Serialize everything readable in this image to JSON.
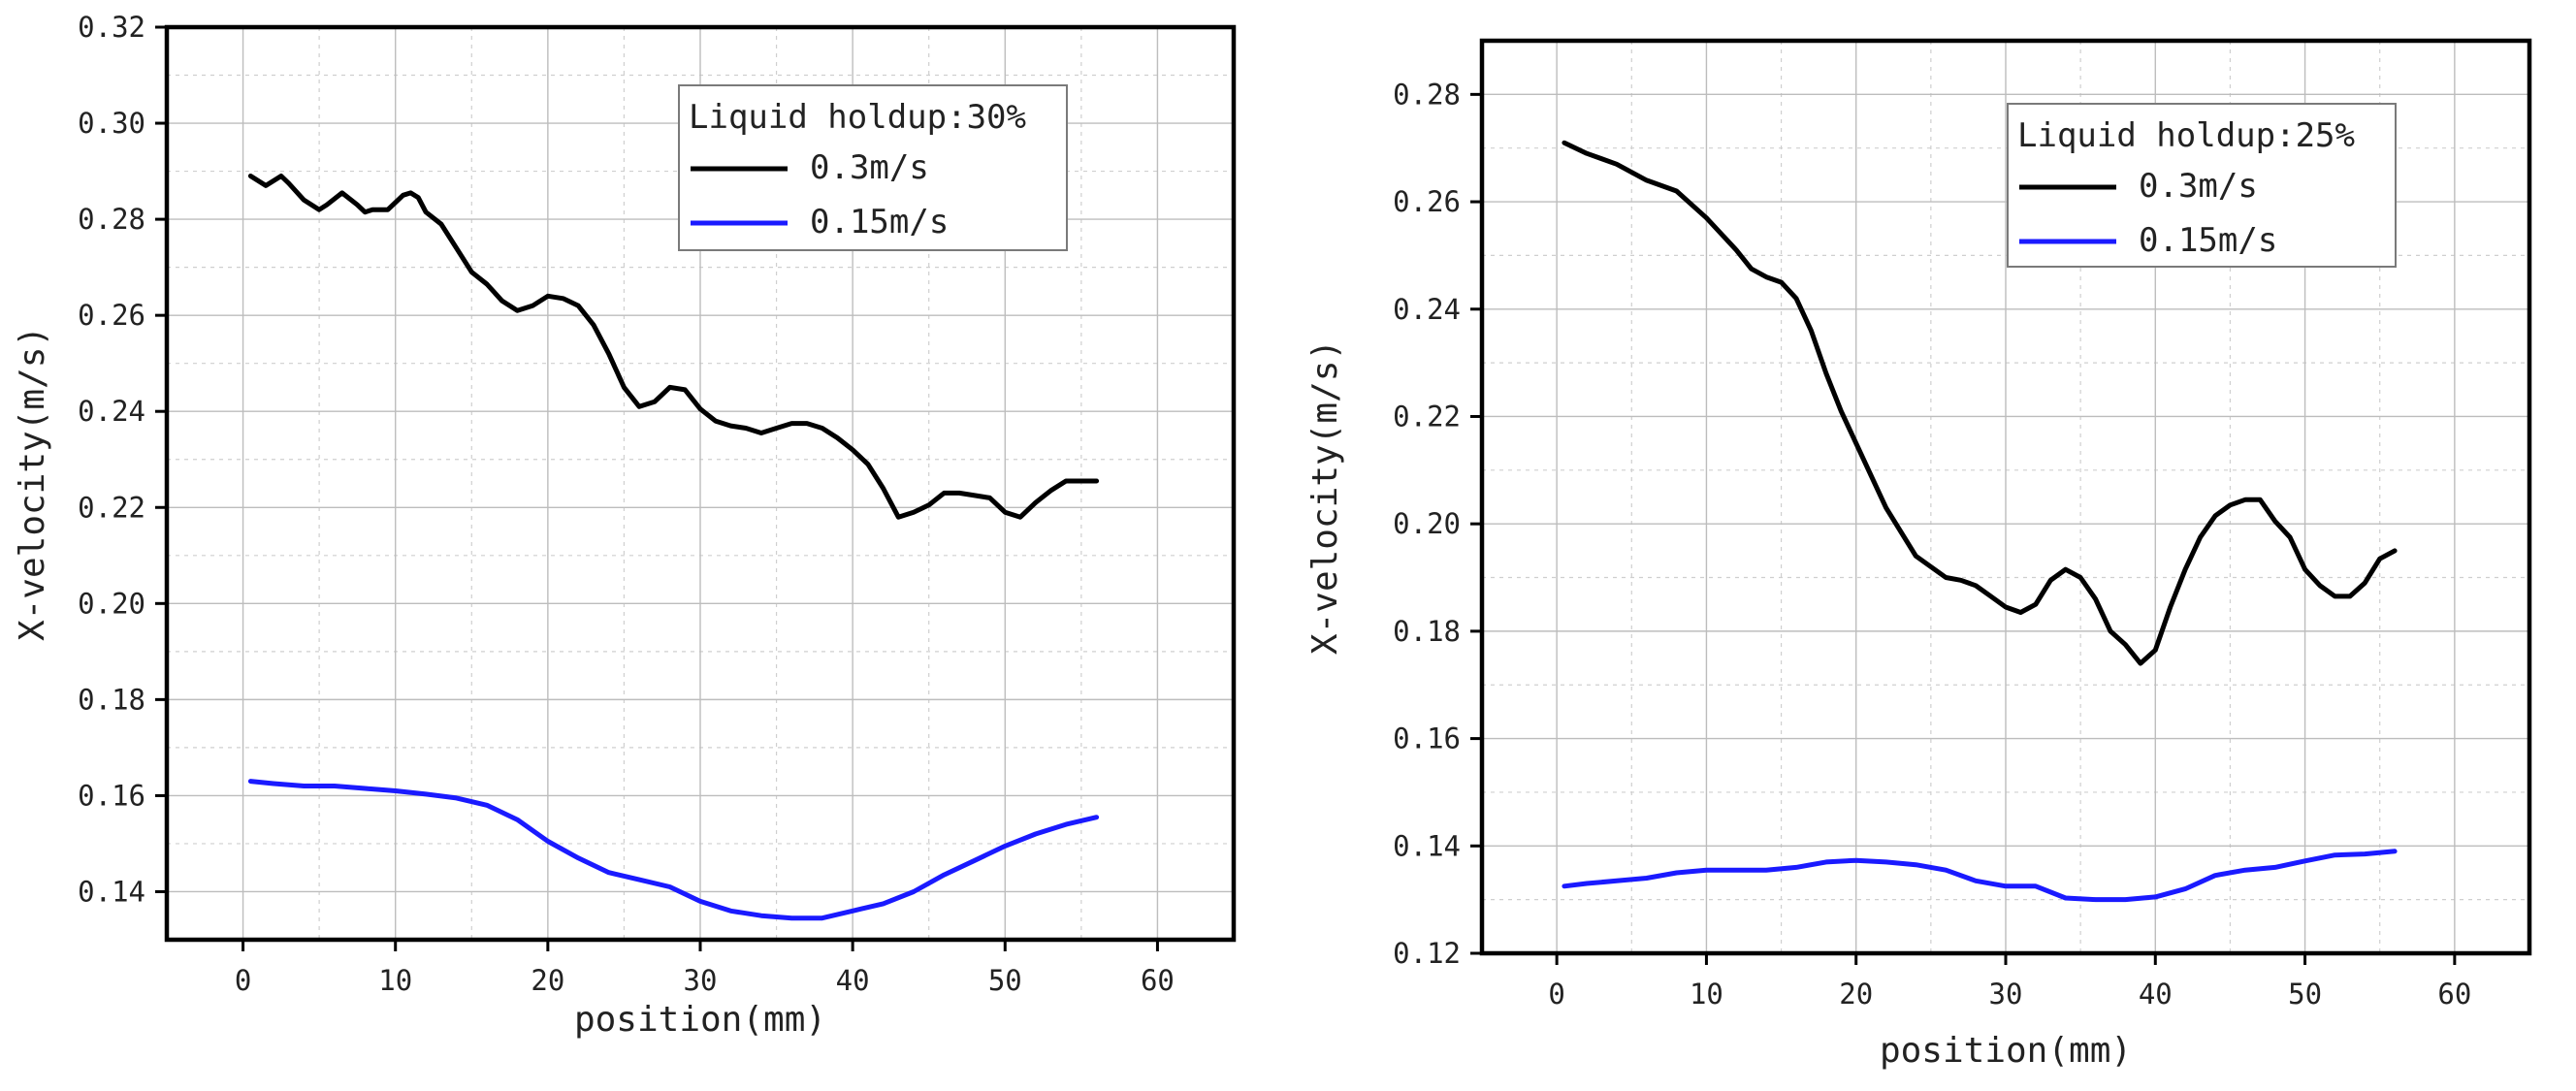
{
  "chart_data": [
    {
      "type": "line",
      "title": "",
      "xlabel": "position(mm)",
      "ylabel": "X-velocity(m/s)",
      "xlim": [
        -5,
        65
      ],
      "ylim": [
        0.13,
        0.32
      ],
      "xticks": [
        0,
        10,
        20,
        30,
        40,
        50,
        60
      ],
      "yticks": [
        0.14,
        0.16,
        0.18,
        0.2,
        0.22,
        0.24,
        0.26,
        0.28,
        0.3,
        0.32
      ],
      "ytick_labels": [
        "0.14",
        "0.16",
        "0.18",
        "0.20",
        "0.22",
        "0.24",
        "0.26",
        "0.28",
        "0.30",
        "0.32"
      ],
      "grid": true,
      "legend": {
        "position": "top-right",
        "title": "Liquid holdup:30%"
      },
      "series": [
        {
          "name": "0.3m/s",
          "color": "#000000",
          "x": [
            0.5,
            1.5,
            2.5,
            3,
            4,
            5,
            5.5,
            6.5,
            7.5,
            8,
            8.5,
            9.5,
            10.5,
            11,
            11.5,
            12,
            13,
            14,
            15,
            16,
            17,
            18,
            19,
            20,
            21,
            22,
            23,
            24,
            25,
            26,
            27,
            28,
            29,
            30,
            31,
            32,
            33,
            34,
            35,
            36,
            37,
            38,
            39,
            40,
            41,
            42,
            43,
            44,
            45,
            46,
            47,
            48,
            49,
            50,
            51,
            52,
            53,
            54,
            55,
            56
          ],
          "values": [
            0.289,
            0.287,
            0.289,
            0.2875,
            0.284,
            0.282,
            0.283,
            0.2855,
            0.283,
            0.2815,
            0.282,
            0.282,
            0.285,
            0.2855,
            0.2845,
            0.2815,
            0.279,
            0.274,
            0.269,
            0.2665,
            0.263,
            0.261,
            0.262,
            0.264,
            0.2635,
            0.262,
            0.258,
            0.252,
            0.245,
            0.241,
            0.242,
            0.245,
            0.2445,
            0.2405,
            0.238,
            0.237,
            0.2365,
            0.2355,
            0.2365,
            0.2375,
            0.2375,
            0.2365,
            0.2345,
            0.232,
            0.229,
            0.224,
            0.218,
            0.219,
            0.2205,
            0.223,
            0.223,
            0.2225,
            0.222,
            0.219,
            0.218,
            0.221,
            0.2235,
            0.2255,
            0.2255,
            0.2255
          ]
        },
        {
          "name": "0.15m/s",
          "color": "#1a1aff",
          "x": [
            0.5,
            2,
            4,
            6,
            8,
            10,
            12,
            14,
            16,
            18,
            20,
            22,
            24,
            26,
            28,
            30,
            32,
            34,
            36,
            38,
            40,
            42,
            44,
            46,
            48,
            50,
            52,
            54,
            56
          ],
          "values": [
            0.163,
            0.1625,
            0.162,
            0.162,
            0.1615,
            0.161,
            0.1603,
            0.1595,
            0.158,
            0.155,
            0.1505,
            0.147,
            0.144,
            0.1425,
            0.141,
            0.138,
            0.136,
            0.135,
            0.1345,
            0.1345,
            0.136,
            0.1375,
            0.14,
            0.1435,
            0.1465,
            0.1495,
            0.152,
            0.154,
            0.1555
          ]
        }
      ]
    },
    {
      "type": "line",
      "title": "",
      "xlabel": "position(mm)",
      "ylabel": "X-velocity(m/s)",
      "xlim": [
        -5,
        65
      ],
      "ylim": [
        0.12,
        0.29
      ],
      "xticks": [
        0,
        10,
        20,
        30,
        40,
        50,
        60
      ],
      "yticks": [
        0.12,
        0.14,
        0.16,
        0.18,
        0.2,
        0.22,
        0.24,
        0.26,
        0.28
      ],
      "ytick_labels": [
        "0.12",
        "0.14",
        "0.16",
        "0.18",
        "0.20",
        "0.22",
        "0.24",
        "0.26",
        "0.28"
      ],
      "grid": true,
      "legend": {
        "position": "top-right",
        "title": "Liquid holdup:25%"
      },
      "series": [
        {
          "name": "0.3m/s",
          "color": "#000000",
          "x": [
            0.5,
            2,
            4,
            6,
            8,
            10,
            12,
            13,
            14,
            15,
            16,
            17,
            18,
            19,
            20,
            22,
            24,
            26,
            27,
            28,
            29,
            30,
            31,
            32,
            33,
            34,
            35,
            36,
            37,
            38,
            39,
            40,
            41,
            42,
            43,
            44,
            45,
            46,
            47,
            48,
            49,
            50,
            51,
            52,
            53,
            54,
            55,
            56
          ],
          "values": [
            0.271,
            0.269,
            0.267,
            0.264,
            0.262,
            0.257,
            0.251,
            0.2475,
            0.246,
            0.245,
            0.242,
            0.236,
            0.228,
            0.221,
            0.215,
            0.203,
            0.194,
            0.19,
            0.1895,
            0.1885,
            0.1865,
            0.1845,
            0.1835,
            0.185,
            0.1895,
            0.1915,
            0.19,
            0.186,
            0.18,
            0.1775,
            0.174,
            0.1765,
            0.1845,
            0.1915,
            0.1975,
            0.2015,
            0.2035,
            0.2045,
            0.2045,
            0.2005,
            0.1975,
            0.1915,
            0.1885,
            0.1865,
            0.1865,
            0.189,
            0.1935,
            0.195
          ]
        },
        {
          "name": "0.15m/s",
          "color": "#1a1aff",
          "x": [
            0.5,
            2,
            4,
            6,
            8,
            10,
            12,
            14,
            16,
            18,
            20,
            22,
            24,
            26,
            28,
            30,
            32,
            34,
            36,
            38,
            40,
            42,
            44,
            46,
            48,
            50,
            52,
            54,
            56
          ],
          "values": [
            0.1325,
            0.133,
            0.1335,
            0.134,
            0.135,
            0.1355,
            0.1355,
            0.1355,
            0.136,
            0.137,
            0.1373,
            0.137,
            0.1365,
            0.1355,
            0.1335,
            0.1325,
            0.1325,
            0.1303,
            0.13,
            0.13,
            0.1305,
            0.132,
            0.1345,
            0.1355,
            0.136,
            0.1372,
            0.1383,
            0.1385,
            0.139
          ]
        }
      ]
    }
  ]
}
